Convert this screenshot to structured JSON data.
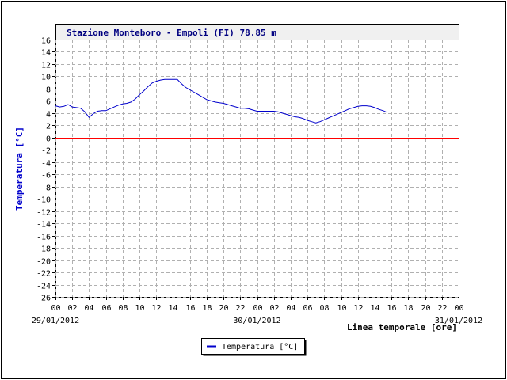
{
  "chart_data": {
    "type": "line",
    "title": "Stazione Monteboro - Empoli (FI) 78.85 m",
    "ylabel": "Temperatura [°C]",
    "xlabel": "Linea temporale [ore]",
    "ylim": [
      -26,
      16
    ],
    "yticks": [
      16,
      14,
      12,
      10,
      8,
      6,
      4,
      2,
      0,
      -2,
      -4,
      -6,
      -8,
      -10,
      -12,
      -14,
      -16,
      -18,
      -20,
      -22,
      -24,
      -26
    ],
    "xlim": [
      0,
      48
    ],
    "xtick_labels": [
      "00",
      "02",
      "04",
      "06",
      "08",
      "10",
      "12",
      "14",
      "16",
      "18",
      "20",
      "22",
      "00",
      "02",
      "04",
      "06",
      "08",
      "10",
      "12",
      "14",
      "16",
      "18",
      "20",
      "22",
      "00"
    ],
    "date_labels": [
      {
        "text": "29/01/2012",
        "x": 0
      },
      {
        "text": "30/01/2012",
        "x": 24
      },
      {
        "text": "31/01/2012",
        "x": 48
      }
    ],
    "grid": true,
    "zero_line_color": "#ff0000",
    "legend": {
      "placement": "bottom-center",
      "label": "Temperatura [°C]"
    },
    "series": [
      {
        "name": "Temperatura [°C]",
        "color": "#0000cc",
        "x": [
          0,
          0.5,
          1,
          1.5,
          2,
          2.5,
          3,
          3.5,
          4,
          4.5,
          5,
          5.5,
          6,
          6.5,
          7,
          7.5,
          8,
          8.5,
          9,
          9.5,
          10,
          10.5,
          11,
          11.5,
          12,
          12.5,
          13,
          13.5,
          14,
          14.5,
          15,
          15.5,
          16,
          16.5,
          17,
          17.5,
          18,
          18.5,
          19,
          19.5,
          20,
          20.5,
          21,
          21.5,
          22,
          22.5,
          23,
          23.5,
          24,
          24.5,
          25,
          25.5,
          26,
          26.5,
          27,
          27.5,
          28,
          28.5,
          29,
          29.5,
          30,
          30.5,
          31,
          31.5,
          32,
          32.5,
          33,
          33.5,
          34,
          34.5,
          35,
          35.5,
          36,
          36.5,
          37,
          37.5,
          38,
          38.5,
          39,
          39.5,
          40
        ],
        "y": [
          5.2,
          5.0,
          5.1,
          5.4,
          5.0,
          4.9,
          4.8,
          4.2,
          3.3,
          3.9,
          4.3,
          4.4,
          4.4,
          4.7,
          5.0,
          5.3,
          5.5,
          5.6,
          5.8,
          6.3,
          7.0,
          7.6,
          8.3,
          8.9,
          9.2,
          9.4,
          9.5,
          9.5,
          9.5,
          9.5,
          8.8,
          8.2,
          7.8,
          7.4,
          7.0,
          6.6,
          6.2,
          6.0,
          5.8,
          5.7,
          5.6,
          5.4,
          5.2,
          5.0,
          4.8,
          4.8,
          4.7,
          4.5,
          4.3,
          4.3,
          4.3,
          4.3,
          4.3,
          4.2,
          4.0,
          3.8,
          3.6,
          3.4,
          3.3,
          3.1,
          2.8,
          2.6,
          2.4,
          2.6,
          2.9,
          3.2,
          3.5,
          3.8,
          4.1,
          4.4,
          4.7,
          4.9,
          5.1,
          5.2,
          5.2,
          5.1,
          4.9,
          4.6,
          4.4,
          4.1,
          null
        ]
      }
    ]
  }
}
